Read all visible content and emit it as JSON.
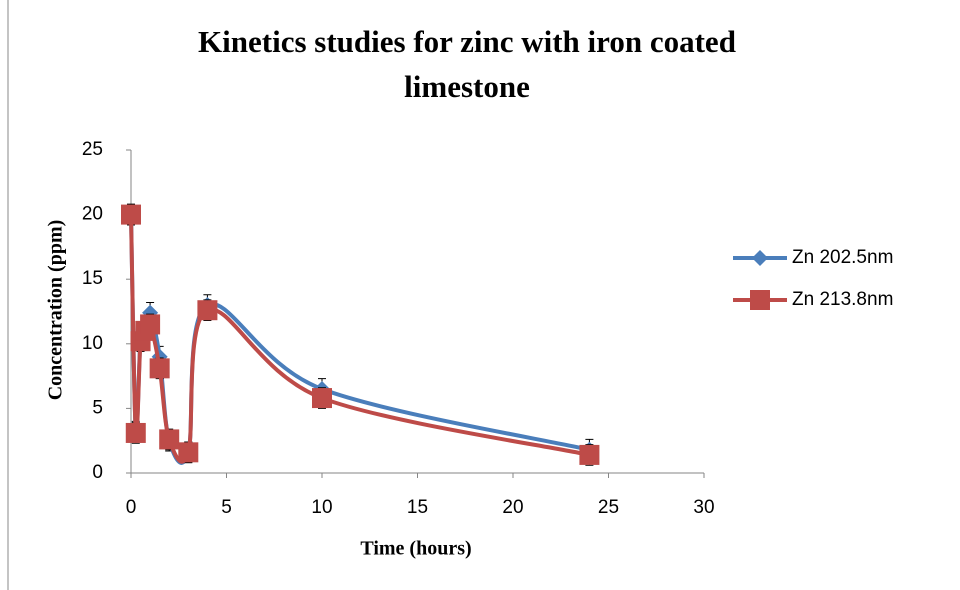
{
  "chart_data": {
    "type": "scatter-smooth",
    "title": "Kinetics studies for zinc with iron coated limestone",
    "x_label": "Time (hours)",
    "y_label": "Concentration (ppm)",
    "x": [
      0,
      0.25,
      0.5,
      0.75,
      1,
      1.5,
      2,
      3,
      4,
      10,
      24
    ],
    "series": [
      {
        "name": "Zn 202.5nm",
        "color": "#4a7ebb",
        "marker": "diamond",
        "values": [
          20,
          3.2,
          10.5,
          11,
          12.4,
          9,
          2.5,
          1.6,
          13,
          6.5,
          1.8
        ],
        "errors": [
          0.8,
          0.8,
          0.8,
          0.8,
          0.8,
          0.8,
          0.8,
          0.8,
          0.8,
          0.8,
          0.8
        ]
      },
      {
        "name": "Zn 213.8nm",
        "color": "#be4b48",
        "marker": "square",
        "values": [
          20,
          3.1,
          10.2,
          11,
          11.5,
          8.1,
          2.6,
          1.6,
          12.6,
          5.8,
          1.4
        ],
        "errors": [
          0.8,
          0.8,
          0.8,
          0.8,
          0.8,
          0.8,
          0.8,
          0.8,
          0.8,
          0.8,
          0.8
        ]
      }
    ],
    "xlim": [
      0,
      30
    ],
    "xticks": [
      0,
      5,
      10,
      15,
      20,
      25,
      30
    ],
    "ylim": [
      0,
      25
    ],
    "yticks": [
      0,
      5,
      10,
      15,
      20,
      25
    ],
    "grid": false,
    "legend": "right"
  }
}
